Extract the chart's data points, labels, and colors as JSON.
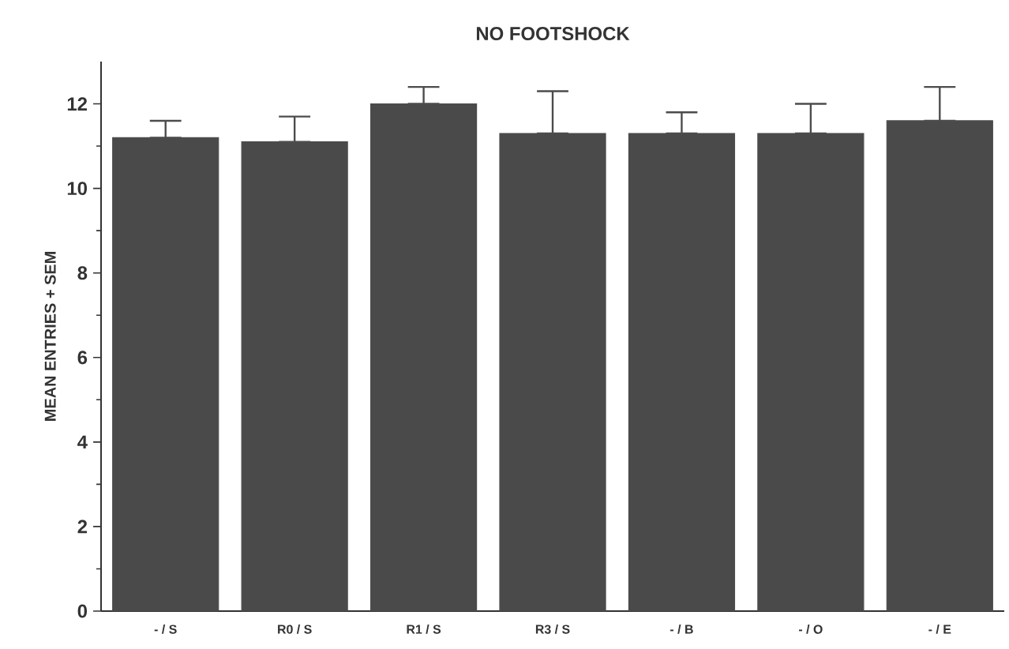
{
  "chart_data": {
    "type": "bar",
    "title": "NO FOOTSHOCK",
    "ylabel": "MEAN ENTRIES + SEM",
    "categories": [
      "- / S",
      "R0 / S",
      "R1 / S",
      "R3 / S",
      "- / B",
      "- / O",
      "- / E"
    ],
    "values": [
      11.2,
      11.1,
      12.0,
      11.3,
      11.3,
      11.3,
      11.6
    ],
    "errors": [
      [
        11.2,
        11.6
      ],
      [
        11.1,
        11.7
      ],
      [
        12.0,
        12.4
      ],
      [
        11.3,
        12.3
      ],
      [
        11.3,
        11.8
      ],
      [
        11.3,
        12.0
      ],
      [
        11.6,
        12.4
      ]
    ],
    "color": "#4a4a4a",
    "ylim": [
      0,
      13
    ],
    "yticks": [
      0,
      2,
      4,
      6,
      8,
      10,
      12
    ]
  }
}
